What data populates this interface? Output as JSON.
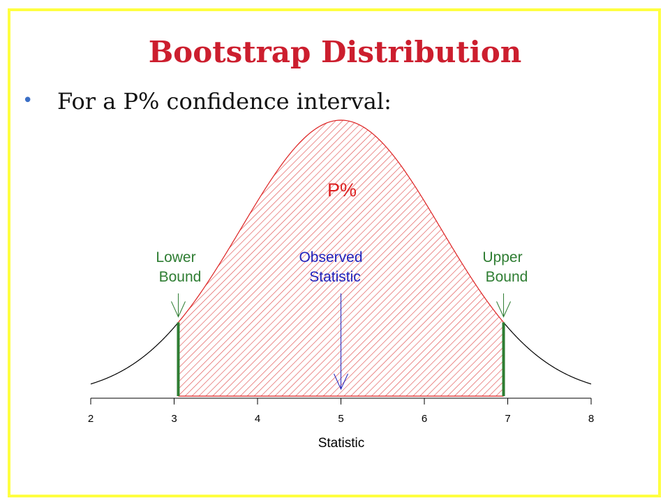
{
  "slide": {
    "title": "Bootstrap Distribution",
    "bullet": "For a P% confidence interval:"
  },
  "colors": {
    "frame": "#ffff40",
    "title": "#cc1e2e",
    "bullet": "#3b6fc6",
    "fill_hatch": "#e05050",
    "curve_outer": "#000000",
    "curve_inner": "#dd2222",
    "bounds": "#2e7d32",
    "observed": "#2222bb"
  },
  "chart_data": {
    "type": "area",
    "distribution": "normal",
    "mean": 5,
    "sd": 1.2,
    "xlim": [
      2,
      8
    ],
    "xticks": [
      2,
      3,
      4,
      5,
      6,
      7,
      8
    ],
    "xlabel": "Statistic",
    "ylabel": "",
    "shaded_region": {
      "from": 3.05,
      "to": 6.95,
      "label": "P%"
    },
    "annotations": [
      {
        "name": "lower-bound",
        "text_lines": [
          "Lower",
          "Bound"
        ],
        "x": 3.05,
        "color": "#2e7d32"
      },
      {
        "name": "observed-statistic",
        "text_lines": [
          "Observed",
          "Statistic"
        ],
        "x": 5,
        "color": "#2222bb"
      },
      {
        "name": "upper-bound",
        "text_lines": [
          "Upper",
          "Bound"
        ],
        "x": 6.95,
        "color": "#2e7d32"
      }
    ]
  }
}
